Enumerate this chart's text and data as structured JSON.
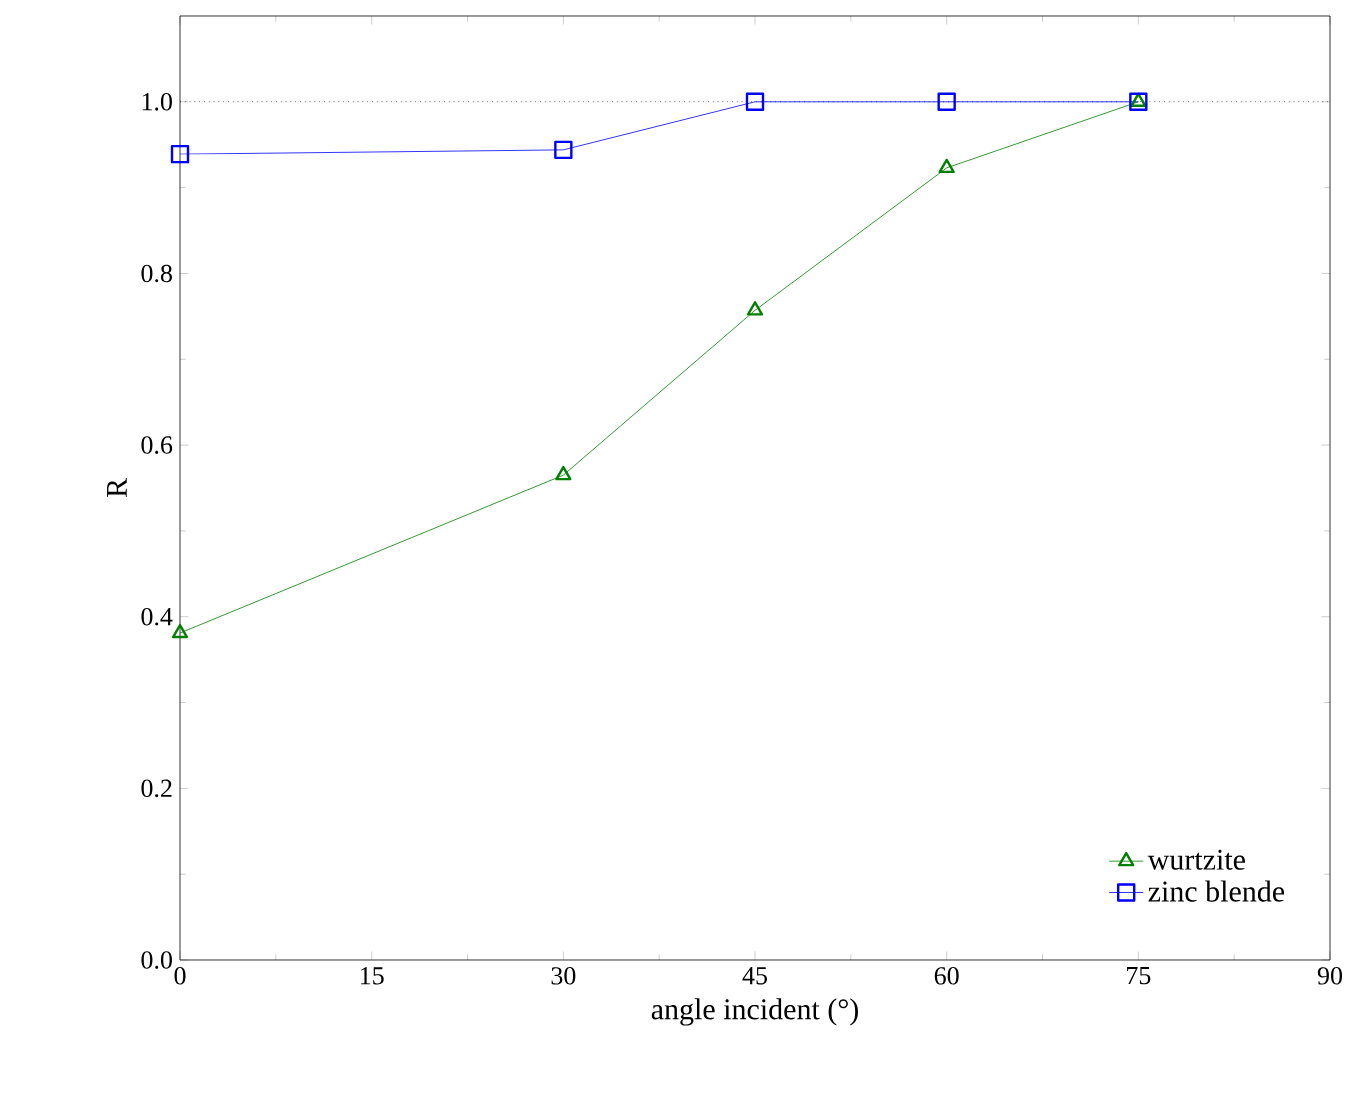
{
  "chart_data": {
    "type": "line",
    "xlabel": "angle incident (°)",
    "ylabel": "R",
    "x": [
      0,
      30,
      45,
      60,
      75
    ],
    "series": [
      {
        "name": "wurtzite",
        "color": "#008000",
        "marker": "triangle",
        "values": [
          0.381,
          0.565,
          0.757,
          0.923,
          1.0
        ]
      },
      {
        "name": "zinc blende",
        "color": "#0000ff",
        "marker": "square",
        "values": [
          0.939,
          0.944,
          1.0,
          1.0,
          1.0
        ]
      }
    ],
    "xlim": [
      0,
      90
    ],
    "xticks": [
      0,
      15,
      30,
      45,
      60,
      75,
      90
    ],
    "ylim": [
      0,
      1.1
    ],
    "yticks": [
      {
        "value": 0,
        "label": "0.0"
      },
      {
        "value": 0.2,
        "label": "0.2"
      },
      {
        "value": 0.4,
        "label": "0.4"
      },
      {
        "value": 0.6,
        "label": "0.6"
      },
      {
        "value": 0.8,
        "label": "0.8"
      },
      {
        "value": 1.0,
        "label": "1.0"
      }
    ],
    "ref_lines": [
      {
        "axis": "y",
        "value": 1.0,
        "color": "#000000",
        "line_style": "dotted"
      }
    ],
    "legend": "bottom right",
    "line_style": "solid",
    "grid": false
  }
}
